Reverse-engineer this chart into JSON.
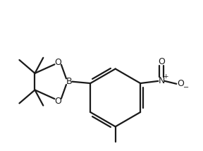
{
  "bg_color": "#ffffff",
  "line_color": "#1a1a1a",
  "line_width": 1.6,
  "fig_width": 2.88,
  "fig_height": 2.14,
  "dpi": 100,
  "xlim": [
    -1.0,
    2.2
  ],
  "ylim": [
    -1.3,
    1.4
  ]
}
